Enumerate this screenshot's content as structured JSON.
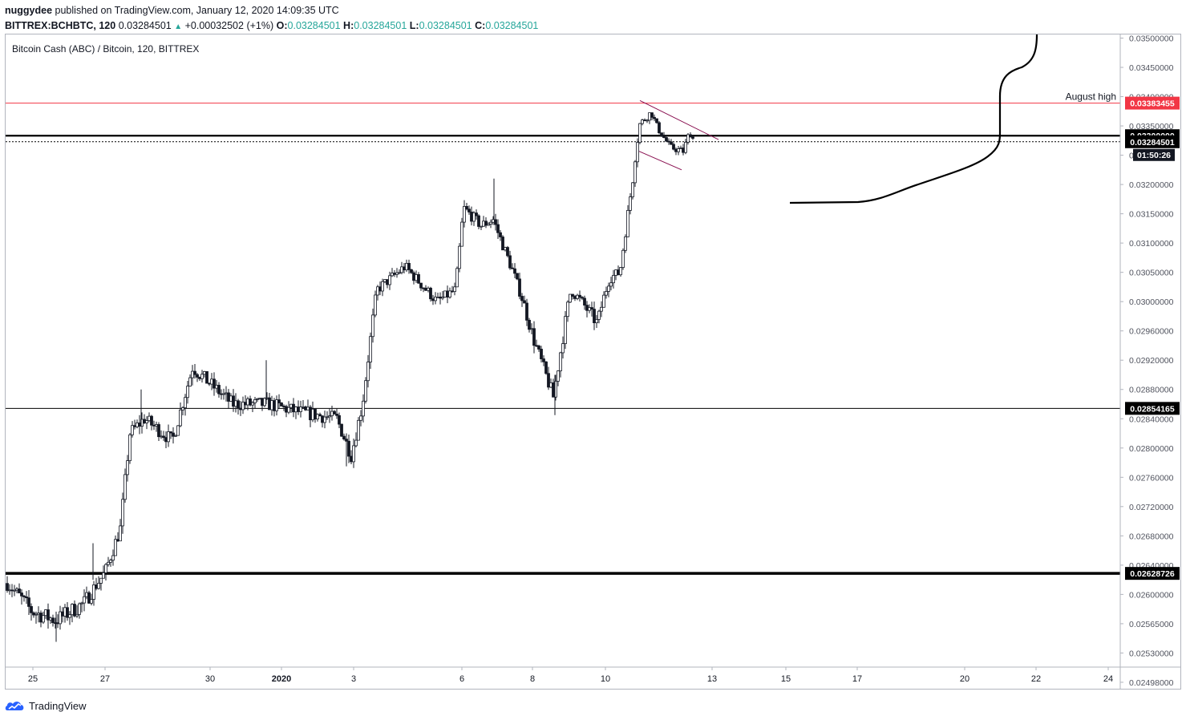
{
  "header": {
    "author": "nuggydee",
    "published_text": "published on TradingView.com, January 12, 2020 14:09:35 UTC",
    "symbol": "BITTREX:BCHBTC, 120",
    "last": "0.03284501",
    "change": "+0.00032502 (+1%)",
    "o_label": "O:",
    "o": "0.03284501",
    "h_label": "H:",
    "h": "0.03284501",
    "l_label": "L:",
    "l": "0.03284501",
    "c_label": "C:",
    "c": "0.03284501"
  },
  "chart_data": {
    "type": "candlestick",
    "title": "Bitcoin Cash (ABC) / Bitcoin, 120, BITTREX",
    "x_tick_labels": [
      "25",
      "27",
      "30",
      "2020",
      "3",
      "6",
      "8",
      "10",
      "13",
      "15",
      "17",
      "20",
      "22",
      "24"
    ],
    "y_tick_labels": [
      0.035,
      0.0345,
      0.034,
      0.0335,
      0.0325,
      0.032,
      0.0315,
      0.031,
      0.0305,
      0.03,
      0.0296,
      0.0292,
      0.0288,
      0.0284,
      0.028,
      0.0276,
      0.0272,
      0.0268,
      0.0264,
      0.026,
      0.02565,
      0.0253,
      0.02498
    ],
    "price_anchors": [
      {
        "price": 0.035,
        "tick_index": 0
      },
      {
        "price": 0.034,
        "tick_index": 2
      },
      {
        "price": 0.0325,
        "tick_index": 4
      },
      {
        "price": 0.032,
        "tick_index": 5
      },
      {
        "price": 0.0305,
        "tick_index": 8
      },
      {
        "price": 0.03,
        "tick_index": 9
      },
      {
        "price": 0.0296,
        "tick_index": 10
      },
      {
        "price": 0.028,
        "tick_index": 14
      },
      {
        "price": 0.026,
        "tick_index": 19
      },
      {
        "price": 0.02498,
        "tick_index": 22
      }
    ],
    "horizontal_levels": [
      {
        "price": 0.03383455,
        "label": "0.03383455",
        "color": "#f23645",
        "annotation": "August high"
      },
      {
        "price": 0.033,
        "label": "0.03300000",
        "color": "#000000"
      },
      {
        "price": 0.03284501,
        "label": "0.03284501",
        "color": "#000000",
        "dotted": true,
        "countdown": "01:50:26"
      },
      {
        "price": 0.02854165,
        "label": "0.02854165",
        "color": "#000000"
      },
      {
        "price": 0.02628726,
        "label": "0.02628726",
        "color": "#000000"
      }
    ],
    "key_prices": {
      "start_low": 0.0257,
      "dec27_low": 0.0258,
      "dec28_high": 0.0287,
      "jan2_low": 0.0278,
      "jan4_high": 0.0308,
      "jan6_high": 0.0317,
      "jan8_low": 0.0285,
      "jan11_high": 0.0339,
      "last": 0.03284501
    },
    "grid": false,
    "legend": "none"
  },
  "icons": {
    "brand": "tradingview-logo-icon"
  },
  "footer": {
    "brand": "TradingView"
  }
}
